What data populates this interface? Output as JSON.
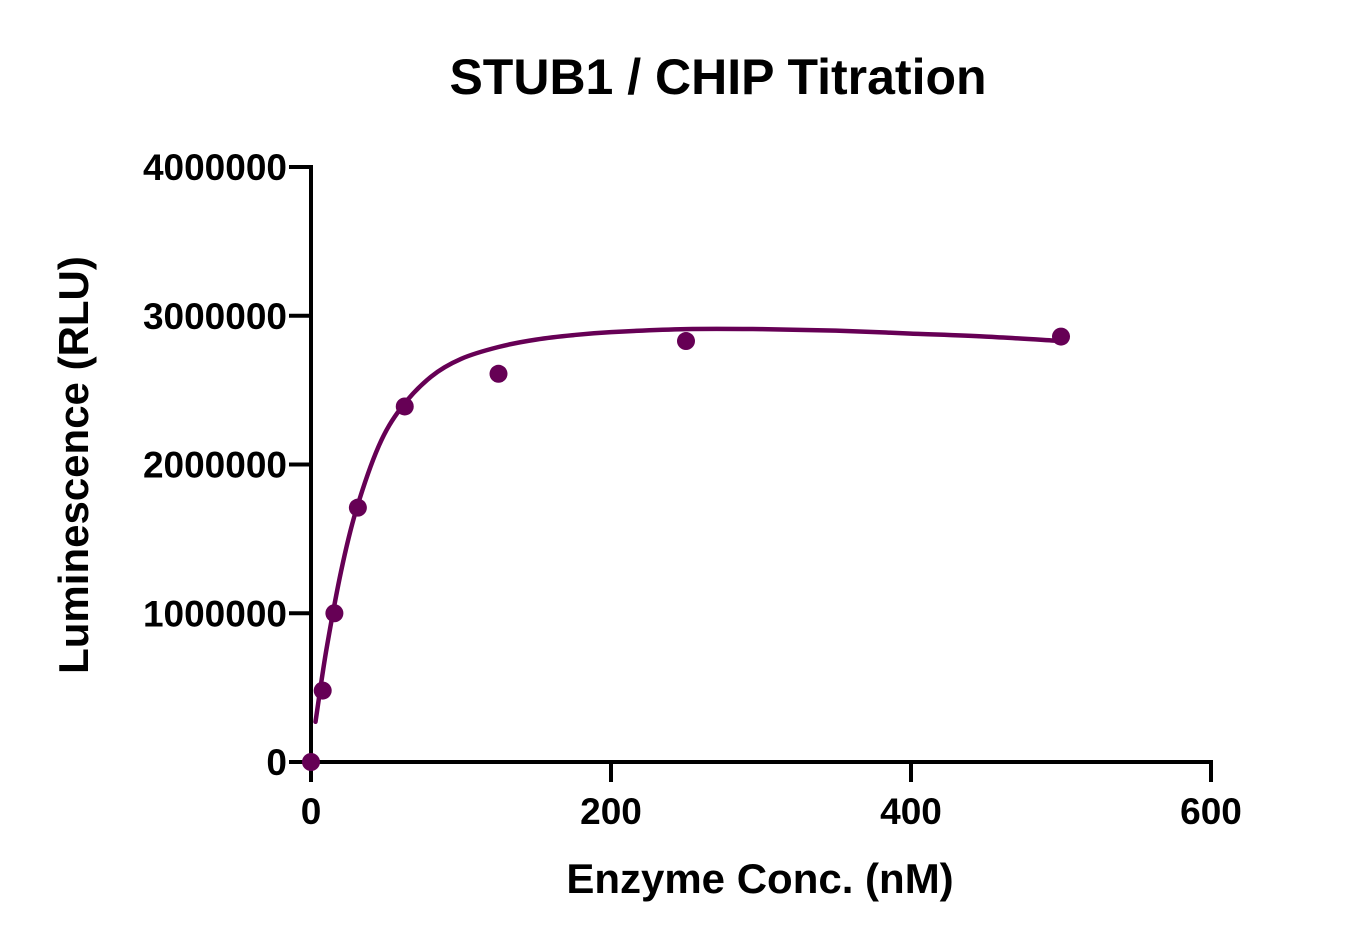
{
  "chart_data": {
    "type": "scatter",
    "title": "STUB1 / CHIP Titration",
    "xlabel": "Enzyme Conc. (nM)",
    "ylabel": "Luminescence (RLU)",
    "xlim": [
      0,
      600
    ],
    "ylim": [
      0,
      4000000
    ],
    "x_ticks": [
      0,
      200,
      400,
      600
    ],
    "x_tick_labels": [
      "0",
      "200",
      "400",
      "600"
    ],
    "y_ticks": [
      0,
      1000000,
      2000000,
      3000000,
      4000000
    ],
    "y_tick_labels": [
      "0",
      "1000000",
      "2000000",
      "3000000",
      "4000000"
    ],
    "grid": false,
    "color": "#660055",
    "points": [
      {
        "x": 0,
        "y": 0
      },
      {
        "x": 7.8,
        "y": 480000
      },
      {
        "x": 15.6,
        "y": 1000000
      },
      {
        "x": 31.25,
        "y": 1710000
      },
      {
        "x": 62.5,
        "y": 2390000
      },
      {
        "x": 125,
        "y": 2610000
      },
      {
        "x": 250,
        "y": 2830000
      },
      {
        "x": 500,
        "y": 2860000
      }
    ],
    "fit_curve": {
      "type": "line",
      "x": [
        3,
        10,
        20,
        30,
        45,
        60,
        80,
        100,
        125,
        150,
        175,
        200,
        250,
        300,
        350,
        400,
        450,
        500
      ],
      "y": [
        270000,
        740000,
        1280000,
        1690000,
        2120000,
        2380000,
        2590000,
        2710000,
        2790000,
        2840000,
        2870000,
        2890000,
        2910000,
        2910000,
        2900000,
        2880000,
        2860000,
        2830000
      ]
    }
  }
}
